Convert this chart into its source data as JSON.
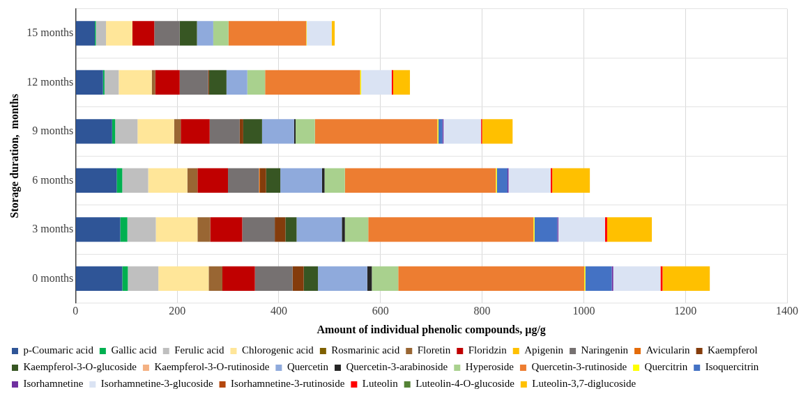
{
  "chart_data": {
    "type": "bar",
    "orientation": "horizontal",
    "stacked": true,
    "xlabel": "Amount of individual phenolic compounds, µg/g",
    "ylabel": "Storage duration,  months",
    "categories": [
      "15 months",
      "12 months",
      "9 months",
      "6 months",
      "3 months",
      "0 months"
    ],
    "xlim": [
      0,
      1400
    ],
    "xticks": [
      0,
      200,
      400,
      600,
      800,
      1000,
      1200,
      1400
    ],
    "grid": true,
    "legend": "bottom",
    "series": [
      {
        "name": "p-Coumaric acid",
        "color": "#2f5597",
        "values": [
          38,
          54,
          72,
          81,
          88,
          92
        ]
      },
      {
        "name": "Gallic acid",
        "color": "#00b050",
        "values": [
          2,
          3,
          6,
          11,
          14,
          11
        ]
      },
      {
        "name": "Ferulic acid",
        "color": "#bfbfbf",
        "values": [
          20,
          28,
          44,
          51,
          56,
          60
        ]
      },
      {
        "name": "Chlorogenic acid",
        "color": "#ffe699",
        "values": [
          52,
          65,
          72,
          77,
          82,
          99
        ]
      },
      {
        "name": "Rosmarinic acid",
        "color": "#7f6000",
        "values": [
          0,
          0,
          0,
          0,
          0,
          0
        ]
      },
      {
        "name": "Floretin",
        "color": "#996633",
        "values": [
          0,
          7,
          13,
          20,
          25,
          27
        ]
      },
      {
        "name": "Floridzin",
        "color": "#c00000",
        "values": [
          43,
          48,
          57,
          60,
          63,
          64
        ]
      },
      {
        "name": "Apigenin",
        "color": "#ffc000",
        "values": [
          0,
          0,
          0,
          0,
          0,
          0
        ]
      },
      {
        "name": "Naringenin",
        "color": "#767171",
        "values": [
          50,
          56,
          59,
          61,
          64,
          74
        ]
      },
      {
        "name": "Avicularin",
        "color": "#e46c0a",
        "values": [
          0,
          0,
          0,
          2,
          0,
          0
        ]
      },
      {
        "name": "Kaempferol",
        "color": "#843c0c",
        "values": [
          0,
          2,
          7,
          12,
          21,
          22
        ]
      },
      {
        "name": "Kaempferol-3-O-glucoside",
        "color": "#375623",
        "values": [
          34,
          34,
          37,
          28,
          22,
          28
        ]
      },
      {
        "name": "Kaempferol-3-O-rutinoside",
        "color": "#f4b183",
        "values": [
          0,
          0,
          0,
          0,
          0,
          0
        ]
      },
      {
        "name": "Quercetin",
        "color": "#8faadc",
        "values": [
          32,
          41,
          63,
          82,
          89,
          97
        ]
      },
      {
        "name": "Quercetin-3-arabinoside",
        "color": "#262626",
        "values": [
          0,
          0,
          3,
          5,
          6,
          9
        ]
      },
      {
        "name": "Hyperoside",
        "color": "#a9d18e",
        "values": [
          30,
          35,
          38,
          40,
          46,
          52
        ]
      },
      {
        "name": "Quercetin-3-rutinoside",
        "color": "#ed7d31",
        "values": [
          153,
          187,
          241,
          297,
          325,
          366
        ]
      },
      {
        "name": "Quercitrin",
        "color": "#ffff00",
        "values": [
          1,
          2,
          2,
          2,
          2,
          2
        ]
      },
      {
        "name": "Isoquercitrin",
        "color": "#4472c4",
        "values": [
          0,
          0,
          8,
          21,
          45,
          52
        ]
      },
      {
        "name": "Isorhamnetine",
        "color": "#7030a0",
        "values": [
          0,
          0,
          2,
          2,
          2,
          3
        ]
      },
      {
        "name": "Isorhamnetine-3-glucoside",
        "color": "#dae3f3",
        "values": [
          49,
          60,
          74,
          83,
          92,
          93
        ]
      },
      {
        "name": "Isorhamnetine-3-rutinoside",
        "color": "#b4470e",
        "values": [
          0,
          0,
          0,
          0,
          0,
          0
        ]
      },
      {
        "name": "Luteolin",
        "color": "#ff0000",
        "values": [
          0,
          3,
          2,
          3,
          4,
          4
        ]
      },
      {
        "name": "Luteolin-4-O-glucoside",
        "color": "#548235",
        "values": [
          0,
          0,
          0,
          0,
          0,
          0
        ]
      },
      {
        "name": "Luteolin-3,7-diglucoside",
        "color": "#ffc000",
        "values": [
          6,
          33,
          60,
          74,
          88,
          93
        ]
      }
    ]
  }
}
